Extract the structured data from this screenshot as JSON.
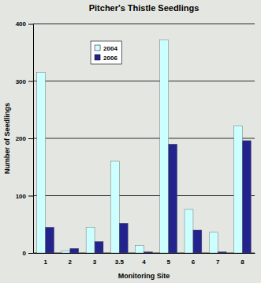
{
  "chart_data": {
    "type": "bar",
    "title": "Pitcher's Thistle Seedlings",
    "x_label": "Monitoring Site",
    "y_label": "Number of Seedlings",
    "categories": [
      "1",
      "2",
      "3",
      "3.5",
      "4",
      "5",
      "6",
      "7",
      "8"
    ],
    "series": [
      {
        "name": "2004",
        "color": "#ccffff",
        "values": [
          315,
          4,
          45,
          160,
          13,
          372,
          76,
          36,
          222
        ]
      },
      {
        "name": "2006",
        "color": "#23238e",
        "values": [
          45,
          8,
          20,
          52,
          2,
          190,
          40,
          2,
          196
        ]
      }
    ],
    "ylim": [
      0,
      400
    ],
    "yticks": [
      0,
      100,
      200,
      300,
      400
    ],
    "grid": true,
    "legend": "upper left"
  }
}
